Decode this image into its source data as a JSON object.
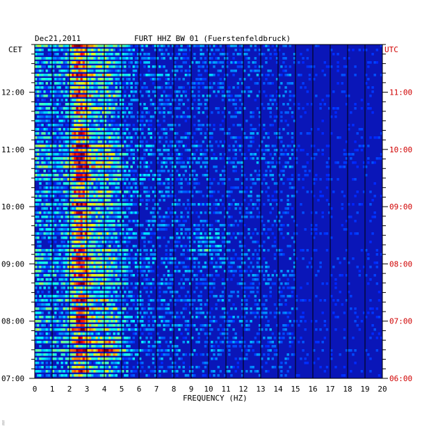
{
  "header": {
    "date": "Dec21,2011",
    "station": "FURT HHZ BW 01 (Fuerstenfeldbruck)",
    "left_timezone": "CET",
    "right_timezone": "UTC"
  },
  "footer": {
    "mark": "░"
  },
  "colors": {
    "background_plot": "#0a16b8",
    "text": "#000000",
    "utc_text": "#d00000",
    "grid": "#000000"
  },
  "chart_data": {
    "type": "heatmap",
    "title": "FURT HHZ BW 01 (Fuerstenfeldbruck)",
    "xlabel": "FREQUENCY (HZ)",
    "x_ticks": [
      "0",
      "1",
      "2",
      "3",
      "4",
      "5",
      "6",
      "7",
      "8",
      "9",
      "10",
      "11",
      "12",
      "13",
      "14",
      "15",
      "16",
      "17",
      "18",
      "19",
      "20"
    ],
    "xlim": [
      0,
      20
    ],
    "left_time_ticks": [
      "07:00",
      "08:00",
      "09:00",
      "10:00",
      "11:00",
      "12:00"
    ],
    "right_time_ticks": [
      "06:00",
      "07:00",
      "08:00",
      "09:00",
      "10:00",
      "11:00"
    ],
    "time_range_cet": [
      "07:00",
      "12:50"
    ],
    "time_direction": "newest at top",
    "colormap": "jet (blue low, red high)",
    "dominant_band_hz": [
      2,
      3.2
    ],
    "secondary_band_hz": [
      3.5,
      5
    ],
    "notable_features": [
      {
        "time_cet": "09:20",
        "freq_hz": [
          9,
          11
        ],
        "note": "elevated energy"
      },
      {
        "time_cet": "07:30",
        "freq_hz": [
          3.5,
          5
        ],
        "note": "elevated energy"
      }
    ]
  }
}
